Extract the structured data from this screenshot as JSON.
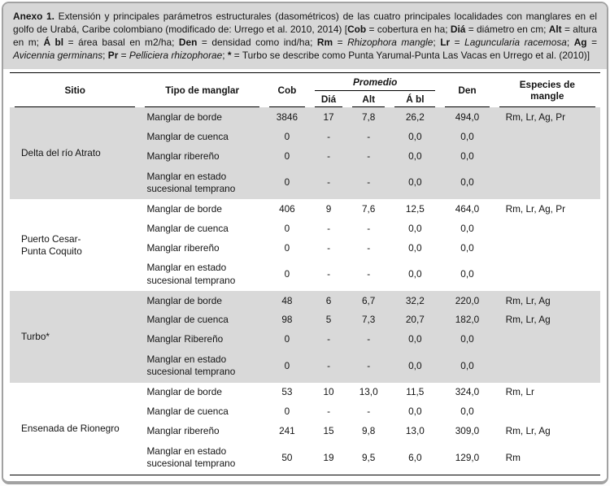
{
  "figure": {
    "caption_segments": [
      {
        "t": "Anexo 1.",
        "b": true
      },
      {
        "t": " Extensión y principales parámetros estructurales (dasométricos) de las cuatro principales localidades con manglares en el golfo de Urabá, Caribe colombiano (modificado de: Urrego et al. 2010, 2014) ["
      },
      {
        "t": "Cob",
        "b": true
      },
      {
        "t": " = cobertura en ha; "
      },
      {
        "t": "Diá",
        "b": true
      },
      {
        "t": " = diámetro en cm; "
      },
      {
        "t": "Alt",
        "b": true
      },
      {
        "t": " = altura en m; "
      },
      {
        "t": "Á bl",
        "b": true
      },
      {
        "t": " = área basal en m2/ha; "
      },
      {
        "t": "Den",
        "b": true
      },
      {
        "t": " = densidad como ind/ha; "
      },
      {
        "t": "Rm",
        "b": true
      },
      {
        "t": " = "
      },
      {
        "t": "Rhizophora mangle",
        "i": true
      },
      {
        "t": "; "
      },
      {
        "t": "Lr",
        "b": true
      },
      {
        "t": " = "
      },
      {
        "t": "Laguncularia racemosa",
        "i": true
      },
      {
        "t": "; "
      },
      {
        "t": "Ag",
        "b": true
      },
      {
        "t": " = "
      },
      {
        "t": "Avicennia germinans",
        "i": true
      },
      {
        "t": "; "
      },
      {
        "t": "Pr",
        "b": true
      },
      {
        "t": " = "
      },
      {
        "t": "Pelliciera rhizophorae",
        "i": true
      },
      {
        "t": "; "
      },
      {
        "t": "*",
        "b": true
      },
      {
        "t": " = Turbo se describe como Punta Yarumal-Punta Las Vacas en Urrego et al. (2010)]"
      }
    ]
  },
  "table": {
    "headers": {
      "sitio": "Sitio",
      "tipo": "Tipo de manglar",
      "cob": "Cob",
      "promedio": "Promedio",
      "dia": "Diá",
      "alt": "Alt",
      "abl": "Á bl",
      "den": "Den",
      "especies": "Especies de mangle"
    },
    "groups": [
      {
        "site": "Delta del río Atrato",
        "shaded": true,
        "rows": [
          {
            "tipo": "Manglar de borde",
            "cob": "3846",
            "dia": "17",
            "alt": "7,8",
            "abl": "26,2",
            "den": "494,0",
            "especies": "Rm, Lr, Ag, Pr"
          },
          {
            "tipo": "Manglar de cuenca",
            "cob": "0",
            "dia": "-",
            "alt": "-",
            "abl": "0,0",
            "den": "0,0",
            "especies": ""
          },
          {
            "tipo": "Manglar ribereño",
            "cob": "0",
            "dia": "-",
            "alt": "-",
            "abl": "0,0",
            "den": "0,0",
            "especies": ""
          },
          {
            "tipo": "Manglar en estado sucesional temprano",
            "cob": "0",
            "dia": "-",
            "alt": "-",
            "abl": "0,0",
            "den": "0,0",
            "especies": ""
          }
        ]
      },
      {
        "site": "Puerto Cesar-\nPunta Coquito",
        "shaded": false,
        "rows": [
          {
            "tipo": "Manglar de borde",
            "cob": "406",
            "dia": "9",
            "alt": "7,6",
            "abl": "12,5",
            "den": "464,0",
            "especies": "Rm, Lr, Ag, Pr"
          },
          {
            "tipo": "Manglar de cuenca",
            "cob": "0",
            "dia": "-",
            "alt": "-",
            "abl": "0,0",
            "den": "0,0",
            "especies": ""
          },
          {
            "tipo": "Manglar ribereño",
            "cob": "0",
            "dia": "-",
            "alt": "-",
            "abl": "0,0",
            "den": "0,0",
            "especies": ""
          },
          {
            "tipo": "Manglar en estado sucesional temprano",
            "cob": "0",
            "dia": "-",
            "alt": "-",
            "abl": "0,0",
            "den": "0,0",
            "especies": ""
          }
        ]
      },
      {
        "site": "Turbo*",
        "shaded": true,
        "rows": [
          {
            "tipo": "Manglar de borde",
            "cob": "48",
            "dia": "6",
            "alt": "6,7",
            "abl": "32,2",
            "den": "220,0",
            "especies": "Rm, Lr, Ag"
          },
          {
            "tipo": "Manglar de cuenca",
            "cob": "98",
            "dia": "5",
            "alt": "7,3",
            "abl": "20,7",
            "den": "182,0",
            "especies": "Rm, Lr, Ag"
          },
          {
            "tipo": "Manglar Ribereño",
            "cob": "0",
            "dia": "-",
            "alt": "-",
            "abl": "0,0",
            "den": "0,0",
            "especies": ""
          },
          {
            "tipo": "Manglar en estado sucesional temprano",
            "cob": "0",
            "dia": "-",
            "alt": "-",
            "abl": "0,0",
            "den": "0,0",
            "especies": ""
          }
        ]
      },
      {
        "site": "Ensenada de Rionegro",
        "shaded": false,
        "rows": [
          {
            "tipo": "Manglar de borde",
            "cob": "53",
            "dia": "10",
            "alt": "13,0",
            "abl": "11,5",
            "den": "324,0",
            "especies": "Rm, Lr"
          },
          {
            "tipo": "Manglar de cuenca",
            "cob": "0",
            "dia": "-",
            "alt": "-",
            "abl": "0,0",
            "den": "0,0",
            "especies": ""
          },
          {
            "tipo": "Manglar ribereño",
            "cob": "241",
            "dia": "15",
            "alt": "9,8",
            "abl": "13,0",
            "den": "309,0",
            "especies": "Rm, Lr, Ag"
          },
          {
            "tipo": "Manglar en estado sucesional temprano",
            "cob": "50",
            "dia": "19",
            "alt": "9,5",
            "abl": "6,0",
            "den": "129,0",
            "especies": "Rm"
          }
        ]
      }
    ]
  },
  "colors": {
    "caption_bg": "#d7d7d7",
    "shaded_row_bg": "#d9d9d9",
    "frame_border": "#a2a2a2",
    "rule": "#000000",
    "text": "#141414"
  }
}
